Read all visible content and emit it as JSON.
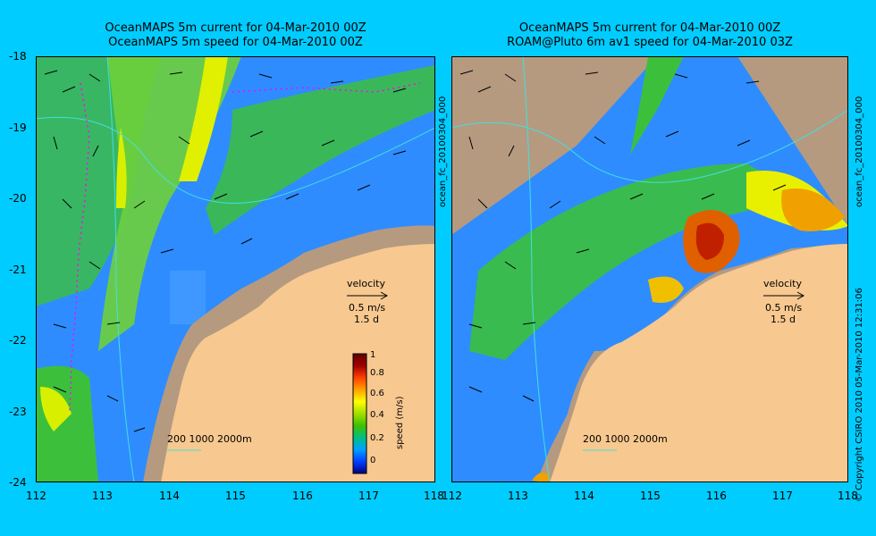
{
  "left_panel": {
    "title_line1": "OceanMAPS 5m current for 04-Mar-2010 00Z",
    "title_line2": "OceanMAPS 5m speed for 04-Mar-2010 00Z",
    "scale": {
      "label": "velocity",
      "speed": "0.5 m/s",
      "duration": "1.5 d"
    },
    "contours": {
      "depths": "200  1000  2000m"
    }
  },
  "right_panel": {
    "title_line1": "OceanMAPS 5m current for 04-Mar-2010 00Z",
    "title_line2": "ROAM@Pluto 6m av1 speed for 04-Mar-2010 03Z",
    "scale": {
      "label": "velocity",
      "speed": "0.5 m/s",
      "duration": "1.5 d"
    },
    "contours": {
      "depths": "200  1000  2000m"
    }
  },
  "side_labels": {
    "forecast_id": "ocean_fc_20100304_000",
    "copyright": "© Copyright CSIRO 2010   05-Mar-2010 12:31:06"
  },
  "colorbar": {
    "label": "speed (m/s)",
    "ticks": [
      "1",
      "0.8",
      "0.6",
      "0.4",
      "0.2",
      "0"
    ],
    "stops": [
      "#000080",
      "#0040ff",
      "#00a0ff",
      "#00c080",
      "#40c000",
      "#a0e000",
      "#ffff00",
      "#ffa000",
      "#ff4000",
      "#a00000",
      "#600000"
    ]
  },
  "axes": {
    "lat_labels": [
      "-18",
      "-19",
      "-20",
      "-21",
      "-22",
      "-23",
      "-24"
    ],
    "lon_labels": [
      "112",
      "113",
      "114",
      "115",
      "116",
      "117",
      "118"
    ]
  },
  "colors": {
    "background": "#00ccff",
    "land": "#f7c890",
    "land_dark": "#b59a80",
    "water_blue": "#2f8cff",
    "water_green": "#3cc03c",
    "contour": "#40e0e0",
    "track": "#ff00ff"
  }
}
